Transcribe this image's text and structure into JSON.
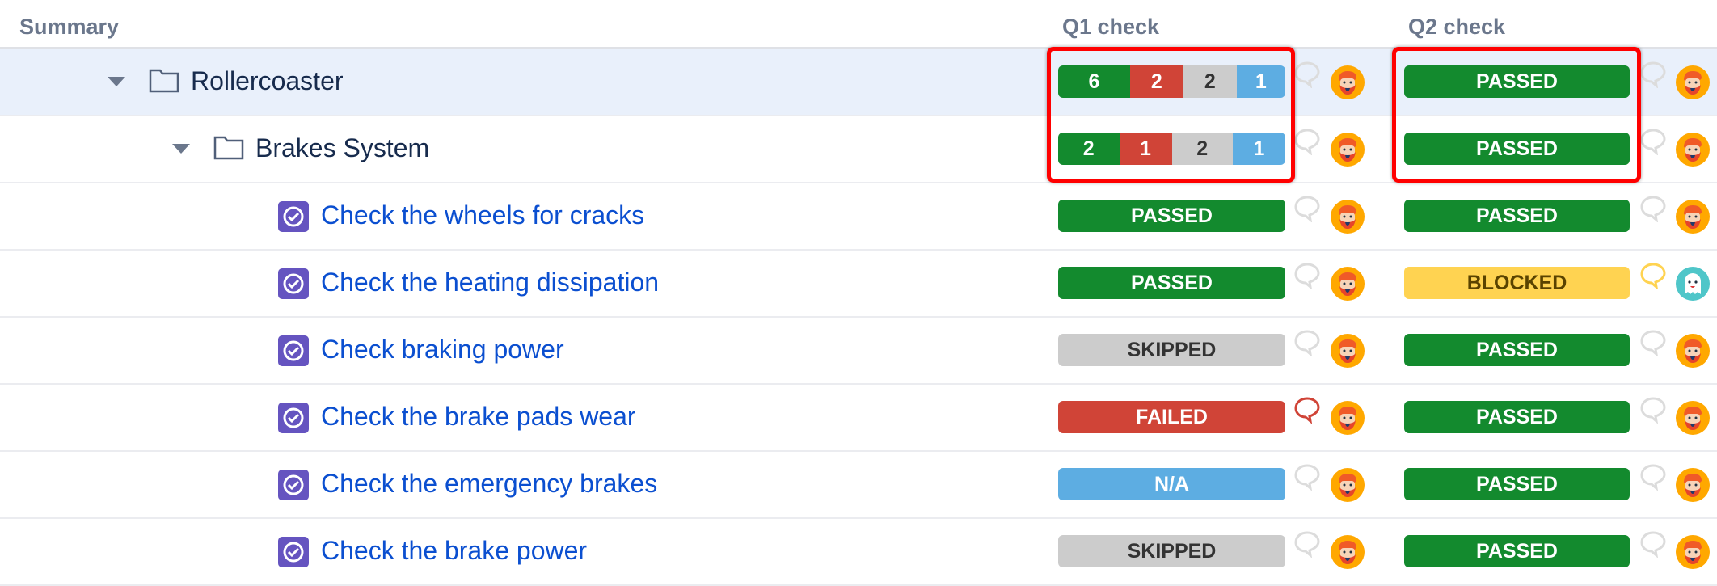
{
  "header": {
    "summary": "Summary",
    "q1": "Q1 check",
    "q2": "Q2 check"
  },
  "colors": {
    "PASSED": "#138a2e",
    "FAILED": "#d04437",
    "SKIPPED": "#cccccc",
    "N/A": "#5dade2",
    "BLOCKED": "#ffd351",
    "selected_row": "#e9f0fb",
    "link": "#0b4fd0",
    "highlight": "#ff0000"
  },
  "rows": [
    {
      "type": "folder",
      "level": 0,
      "title": "Rollercoaster",
      "selected": true,
      "q1": {
        "segments": [
          {
            "status": "PASSED",
            "count": "6"
          },
          {
            "status": "FAILED",
            "count": "2"
          },
          {
            "status": "SKIPPED",
            "count": "2"
          },
          {
            "status": "N/A",
            "count": "1"
          }
        ],
        "comment": "none",
        "avatar": "bearded-man"
      },
      "q2": {
        "status": "PASSED",
        "comment": "none",
        "avatar": "bearded-man"
      }
    },
    {
      "type": "folder",
      "level": 1,
      "title": "Brakes System",
      "q1": {
        "segments": [
          {
            "status": "PASSED",
            "count": "2"
          },
          {
            "status": "FAILED",
            "count": "1"
          },
          {
            "status": "SKIPPED",
            "count": "2"
          },
          {
            "status": "N/A",
            "count": "1"
          }
        ],
        "comment": "none",
        "avatar": "bearded-man"
      },
      "q2": {
        "status": "PASSED",
        "comment": "none",
        "avatar": "bearded-man"
      }
    },
    {
      "type": "test",
      "title": "Check the wheels for cracks",
      "q1": {
        "status": "PASSED",
        "comment": "none",
        "avatar": "bearded-man"
      },
      "q2": {
        "status": "PASSED",
        "comment": "none",
        "avatar": "bearded-man"
      }
    },
    {
      "type": "test",
      "title": "Check the heating dissipation",
      "q1": {
        "status": "PASSED",
        "comment": "none",
        "avatar": "bearded-man"
      },
      "q2": {
        "status": "BLOCKED",
        "comment": "blocked",
        "avatar": "ghost"
      }
    },
    {
      "type": "test",
      "title": "Check braking power",
      "q1": {
        "status": "SKIPPED",
        "comment": "none",
        "avatar": "bearded-man"
      },
      "q2": {
        "status": "PASSED",
        "comment": "none",
        "avatar": "bearded-man"
      }
    },
    {
      "type": "test",
      "title": "Check the brake pads wear",
      "q1": {
        "status": "FAILED",
        "comment": "failed",
        "avatar": "bearded-man"
      },
      "q2": {
        "status": "PASSED",
        "comment": "none",
        "avatar": "bearded-man"
      }
    },
    {
      "type": "test",
      "title": "Check the emergency brakes",
      "q1": {
        "status": "N/A",
        "comment": "none",
        "avatar": "bearded-man"
      },
      "q2": {
        "status": "PASSED",
        "comment": "none",
        "avatar": "bearded-man"
      }
    },
    {
      "type": "test",
      "title": "Check the brake power",
      "q1": {
        "status": "SKIPPED",
        "comment": "none",
        "avatar": "bearded-man"
      },
      "q2": {
        "status": "PASSED",
        "comment": "none",
        "avatar": "bearded-man"
      }
    }
  ]
}
